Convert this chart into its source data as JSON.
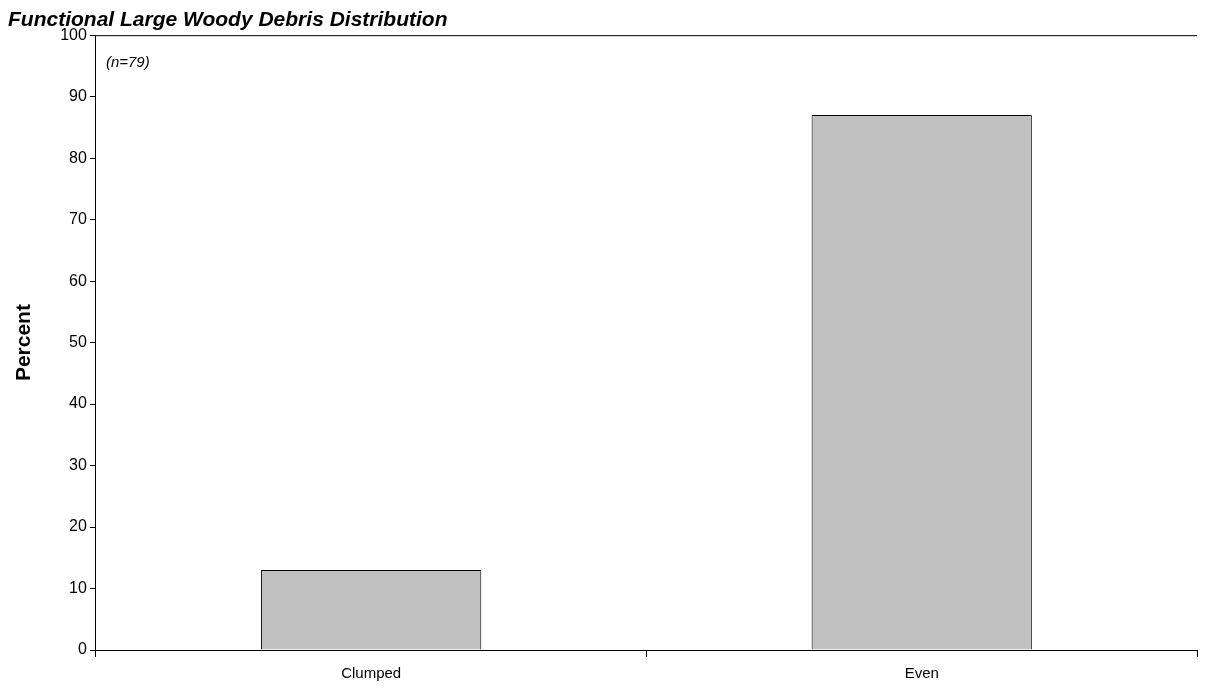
{
  "chart_data": {
    "type": "bar",
    "title": "Functional Large Woody Debris Distribution",
    "ylabel": "Percent",
    "annotations": [
      "(n=79)"
    ],
    "categories": [
      "Clumped",
      "Even"
    ],
    "values": [
      13,
      87
    ],
    "color": "#c0c0c0",
    "ylim": [
      0,
      100
    ],
    "yticks": [
      0,
      10,
      20,
      30,
      40,
      50,
      60,
      70,
      80,
      90,
      100
    ],
    "grid": false,
    "legend": false
  }
}
